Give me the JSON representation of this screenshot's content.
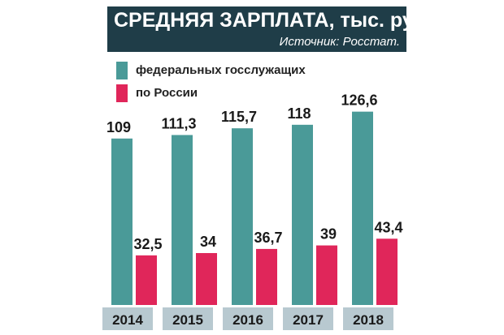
{
  "header": {
    "title": "СРЕДНЯЯ ЗАРПЛАТА, тыс. руб.",
    "source": "Источник: Росстат."
  },
  "colors": {
    "header_bg": "#1f3d48",
    "federal": "#4a9a98",
    "russia": "#e0265a",
    "year_box": "#b8c9d0"
  },
  "chart_data": {
    "type": "bar",
    "title": "СРЕДНЯЯ ЗАРПЛАТА, тыс. руб.",
    "categories": [
      "2014",
      "2015",
      "2016",
      "2017",
      "2018"
    ],
    "series": [
      {
        "name": "федеральных госслужащих",
        "values": [
          109,
          111.3,
          115.7,
          118,
          126.6
        ],
        "labels": [
          "109",
          "111,3",
          "115,7",
          "118",
          "126,6"
        ]
      },
      {
        "name": "по России",
        "values": [
          32.5,
          34,
          36.7,
          39,
          43.4
        ],
        "labels": [
          "32,5",
          "34",
          "36,7",
          "39",
          "43,4"
        ]
      }
    ],
    "ylim": [
      0,
      145
    ],
    "grid": false,
    "legend": "top-left"
  }
}
